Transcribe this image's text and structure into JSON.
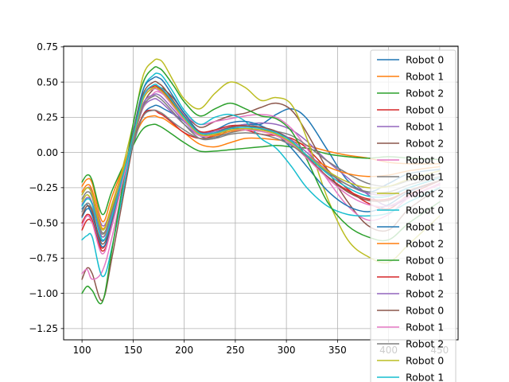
{
  "chart_data": {
    "type": "line",
    "title": "",
    "xlabel": "",
    "ylabel": "",
    "xlim": [
      82,
      468
    ],
    "ylim": [
      -1.33,
      0.755
    ],
    "grid": true,
    "legend_placement": "right (clipped at bottom)",
    "x_ticks": [
      100,
      150,
      200,
      250,
      300,
      350,
      400,
      450
    ],
    "y_ticks": [
      0.75,
      0.5,
      0.25,
      0.0,
      -0.25,
      -0.5,
      -0.75,
      -1.0,
      -1.25
    ],
    "x_tick_labels": [
      "100",
      "150",
      "200",
      "250",
      "300",
      "350",
      "400",
      "450"
    ],
    "y_tick_labels": [
      "0.75",
      "0.50",
      "0.25",
      "0.00",
      "−0.25",
      "−0.50",
      "−0.75",
      "−1.00",
      "−1.25"
    ],
    "legend": [
      "Robot 0",
      "Robot 1",
      "Robot 2",
      "Robot 0",
      "Robot 1",
      "Robot 2",
      "Robot 0",
      "Robot 1",
      "Robot 2",
      "Robot 0",
      "Robot 1",
      "Robot 2",
      "Robot 0",
      "Robot 1",
      "Robot 2",
      "Robot 0",
      "Robot 1",
      "Robot 2",
      "Robot 0",
      "Robot 1"
    ],
    "x": [
      100,
      105,
      110,
      120,
      130,
      150,
      160,
      170,
      175,
      180,
      190,
      200,
      215,
      230,
      245,
      260,
      275,
      290,
      305,
      320,
      340,
      360,
      380,
      400,
      420,
      450
    ],
    "series": [
      {
        "name": "Robot 0",
        "color": "#1f77b4",
        "values": [
          -0.4,
          -0.37,
          -0.45,
          -0.63,
          -0.45,
          0.05,
          0.27,
          0.33,
          0.33,
          0.31,
          0.27,
          0.22,
          0.12,
          0.1,
          0.17,
          0.2,
          0.2,
          0.27,
          0.31,
          0.24,
          0.02,
          -0.2,
          -0.28,
          -0.22,
          -0.15,
          -0.12
        ]
      },
      {
        "name": "Robot 1",
        "color": "#ff7f0e",
        "values": [
          -0.24,
          -0.19,
          -0.22,
          -0.49,
          -0.3,
          0.08,
          0.23,
          0.26,
          0.25,
          0.24,
          0.19,
          0.14,
          0.06,
          0.04,
          0.07,
          0.1,
          0.1,
          0.09,
          0.08,
          0.05,
          0.01,
          -0.02,
          -0.04,
          -0.07,
          -0.08,
          -0.08
        ]
      },
      {
        "name": "Robot 2",
        "color": "#2ca02c",
        "values": [
          -0.21,
          -0.16,
          -0.2,
          -0.44,
          -0.26,
          0.05,
          0.17,
          0.2,
          0.19,
          0.17,
          0.12,
          0.07,
          0.01,
          0.01,
          0.02,
          0.03,
          0.04,
          0.05,
          0.04,
          0.03,
          -0.01,
          -0.03,
          -0.04,
          -0.03,
          -0.04,
          -0.05
        ]
      },
      {
        "name": "Robot 0",
        "color": "#d62728",
        "values": [
          -0.55,
          -0.48,
          -0.5,
          -0.68,
          -0.48,
          0.06,
          0.27,
          0.3,
          0.28,
          0.26,
          0.2,
          0.14,
          0.1,
          0.12,
          0.17,
          0.16,
          0.13,
          0.12,
          0.1,
          0.03,
          -0.12,
          -0.26,
          -0.36,
          -0.4,
          -0.3,
          -0.2
        ]
      },
      {
        "name": "Robot 1",
        "color": "#9467bd",
        "values": [
          -0.3,
          -0.25,
          -0.28,
          -0.52,
          -0.36,
          0.1,
          0.32,
          0.38,
          0.37,
          0.34,
          0.27,
          0.2,
          0.12,
          0.13,
          0.18,
          0.2,
          0.21,
          0.2,
          0.16,
          0.08,
          -0.06,
          -0.18,
          -0.3,
          -0.38,
          -0.32,
          -0.22
        ]
      },
      {
        "name": "Robot 2",
        "color": "#8c564b",
        "values": [
          -0.9,
          -0.82,
          -0.86,
          -1.05,
          -0.72,
          0.06,
          0.34,
          0.45,
          0.46,
          0.45,
          0.38,
          0.28,
          0.18,
          0.22,
          0.26,
          0.28,
          0.32,
          0.35,
          0.3,
          0.14,
          -0.12,
          -0.35,
          -0.52,
          -0.55,
          -0.4,
          -0.25
        ]
      },
      {
        "name": "Robot 0",
        "color": "#e377c2",
        "values": [
          -0.86,
          -0.83,
          -0.9,
          -0.84,
          -0.58,
          0.08,
          0.32,
          0.42,
          0.43,
          0.41,
          0.35,
          0.27,
          0.2,
          0.22,
          0.24,
          0.26,
          0.27,
          0.25,
          0.17,
          0.03,
          -0.19,
          -0.38,
          -0.48,
          -0.44,
          -0.32,
          -0.22
        ]
      },
      {
        "name": "Robot 1",
        "color": "#7f7f7f",
        "values": [
          -0.42,
          -0.36,
          -0.4,
          -0.58,
          -0.41,
          0.06,
          0.26,
          0.3,
          0.29,
          0.27,
          0.21,
          0.16,
          0.1,
          0.11,
          0.14,
          0.16,
          0.16,
          0.15,
          0.12,
          0.05,
          -0.06,
          -0.15,
          -0.22,
          -0.24,
          -0.2,
          -0.15
        ]
      },
      {
        "name": "Robot 2",
        "color": "#bcbd22",
        "values": [
          -0.35,
          -0.3,
          -0.36,
          -0.6,
          -0.38,
          0.2,
          0.55,
          0.65,
          0.66,
          0.63,
          0.5,
          0.38,
          0.31,
          0.42,
          0.5,
          0.46,
          0.37,
          0.39,
          0.34,
          0.1,
          -0.32,
          -0.62,
          -0.74,
          -0.78,
          -0.65,
          -0.45
        ]
      },
      {
        "name": "Robot 0",
        "color": "#17becf",
        "values": [
          -0.62,
          -0.59,
          -0.6,
          -0.88,
          -0.65,
          0.1,
          0.45,
          0.55,
          0.56,
          0.53,
          0.42,
          0.3,
          0.2,
          0.25,
          0.27,
          0.22,
          0.1,
          0.03,
          -0.1,
          -0.25,
          -0.38,
          -0.44,
          -0.45,
          -0.43,
          -0.35,
          -0.25
        ]
      },
      {
        "name": "Robot 1",
        "color": "#1f77b4",
        "values": [
          -0.46,
          -0.4,
          -0.44,
          -0.67,
          -0.47,
          0.15,
          0.45,
          0.53,
          0.53,
          0.5,
          0.39,
          0.28,
          0.15,
          0.16,
          0.21,
          0.22,
          0.19,
          0.13,
          0.03,
          -0.1,
          -0.27,
          -0.38,
          -0.42,
          -0.37,
          -0.28,
          -0.2
        ]
      },
      {
        "name": "Robot 2",
        "color": "#ff7f0e",
        "values": [
          -0.28,
          -0.23,
          -0.27,
          -0.54,
          -0.35,
          0.12,
          0.38,
          0.46,
          0.45,
          0.42,
          0.33,
          0.24,
          0.13,
          0.12,
          0.15,
          0.16,
          0.15,
          0.12,
          0.06,
          -0.02,
          -0.1,
          -0.15,
          -0.17,
          -0.16,
          -0.13,
          -0.1
        ]
      },
      {
        "name": "Robot 0",
        "color": "#2ca02c",
        "values": [
          -1.0,
          -0.95,
          -0.98,
          -1.06,
          -0.66,
          0.2,
          0.5,
          0.6,
          0.6,
          0.57,
          0.47,
          0.36,
          0.26,
          0.31,
          0.35,
          0.31,
          0.26,
          0.24,
          0.15,
          -0.05,
          -0.35,
          -0.52,
          -0.6,
          -0.62,
          -0.5,
          -0.35
        ]
      },
      {
        "name": "Robot 1",
        "color": "#d62728",
        "values": [
          -0.5,
          -0.44,
          -0.48,
          -0.7,
          -0.5,
          0.12,
          0.4,
          0.47,
          0.46,
          0.43,
          0.34,
          0.25,
          0.15,
          0.16,
          0.19,
          0.19,
          0.17,
          0.13,
          0.06,
          -0.04,
          -0.17,
          -0.27,
          -0.33,
          -0.33,
          -0.27,
          -0.2
        ]
      },
      {
        "name": "Robot 2",
        "color": "#9467bd",
        "values": [
          -0.37,
          -0.32,
          -0.36,
          -0.6,
          -0.42,
          0.1,
          0.35,
          0.41,
          0.41,
          0.38,
          0.3,
          0.22,
          0.14,
          0.15,
          0.18,
          0.19,
          0.18,
          0.15,
          0.09,
          0.0,
          -0.13,
          -0.23,
          -0.29,
          -0.3,
          -0.25,
          -0.18
        ]
      },
      {
        "name": "Robot 0",
        "color": "#8c564b",
        "values": [
          -0.45,
          -0.38,
          -0.42,
          -0.65,
          -0.45,
          0.14,
          0.42,
          0.5,
          0.49,
          0.46,
          0.36,
          0.26,
          0.14,
          0.14,
          0.18,
          0.19,
          0.18,
          0.15,
          0.08,
          -0.03,
          -0.17,
          -0.28,
          -0.34,
          -0.34,
          -0.27,
          -0.2
        ]
      },
      {
        "name": "Robot 1",
        "color": "#e377c2",
        "values": [
          -0.52,
          -0.45,
          -0.5,
          -0.72,
          -0.5,
          0.11,
          0.39,
          0.45,
          0.44,
          0.41,
          0.32,
          0.23,
          0.12,
          0.13,
          0.16,
          0.16,
          0.15,
          0.12,
          0.06,
          -0.04,
          -0.18,
          -0.3,
          -0.37,
          -0.38,
          -0.31,
          -0.23
        ]
      },
      {
        "name": "Robot 2",
        "color": "#7f7f7f",
        "values": [
          -0.33,
          -0.28,
          -0.32,
          -0.57,
          -0.4,
          0.09,
          0.33,
          0.4,
          0.39,
          0.36,
          0.28,
          0.2,
          0.1,
          0.1,
          0.13,
          0.14,
          0.13,
          0.1,
          0.05,
          -0.03,
          -0.14,
          -0.23,
          -0.28,
          -0.28,
          -0.23,
          -0.17
        ]
      },
      {
        "name": "Robot 0",
        "color": "#bcbd22",
        "values": [
          -0.3,
          -0.25,
          -0.3,
          -0.55,
          -0.36,
          0.11,
          0.38,
          0.46,
          0.45,
          0.42,
          0.33,
          0.24,
          0.13,
          0.13,
          0.16,
          0.17,
          0.16,
          0.13,
          0.07,
          -0.02,
          -0.13,
          -0.21,
          -0.25,
          -0.24,
          -0.19,
          -0.13
        ]
      },
      {
        "name": "Robot 1",
        "color": "#17becf",
        "values": [
          -0.38,
          -0.33,
          -0.37,
          -0.62,
          -0.44,
          0.12,
          0.4,
          0.48,
          0.47,
          0.44,
          0.35,
          0.25,
          0.14,
          0.14,
          0.17,
          0.18,
          0.17,
          0.14,
          0.08,
          -0.02,
          -0.15,
          -0.25,
          -0.31,
          -0.31,
          -0.25,
          -0.18
        ]
      }
    ]
  }
}
